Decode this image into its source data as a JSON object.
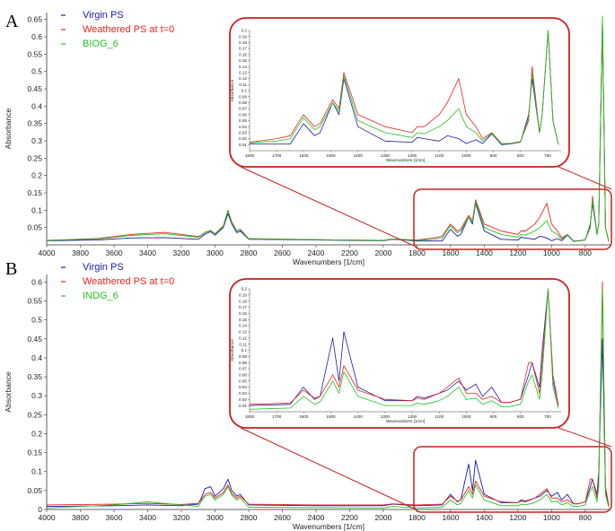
{
  "chart_data": [
    {
      "type": "line",
      "panel_label": "A",
      "xlabel": "Wavenumbers [1/cm]",
      "ylabel": "Absorbance",
      "xlim": [
        4000,
        650
      ],
      "ylim": [
        0,
        0.67
      ],
      "x_ticks": [
        4000,
        3800,
        3600,
        3400,
        3200,
        3000,
        2800,
        2600,
        2400,
        2200,
        2000,
        1800,
        1600,
        1400,
        1200,
        1000,
        800
      ],
      "y_ticks": [
        0.05,
        0.1,
        0.15,
        0.2,
        0.25,
        0.3,
        0.35,
        0.4,
        0.45,
        0.5,
        0.55,
        0.6,
        0.65
      ],
      "x_tick_labels": [
        "4000",
        "3800",
        "3600",
        "3400",
        "3200",
        "3000",
        "2800",
        "2600",
        "2400",
        "2200",
        "2000",
        "1800",
        "1600",
        "1400",
        "1200",
        "1000",
        "800"
      ],
      "y_tick_labels": [
        "0.05",
        "0.1",
        "0.15",
        "0.2",
        "0.25",
        "0.3",
        "0.35",
        "0.4",
        "0.45",
        "0.5",
        "0.55",
        "0.6",
        "0.65"
      ],
      "legend": "top-left",
      "colors": [
        "#1a1aa8",
        "#e8231e",
        "#22c422"
      ],
      "series": [
        {
          "name": "Virgin PS",
          "x": [
            4000,
            3700,
            3500,
            3300,
            3100,
            3082,
            3060,
            3026,
            3000,
            2950,
            2923,
            2900,
            2870,
            2850,
            2800,
            2400,
            2000,
            1943,
            1800,
            1650,
            1601,
            1560,
            1540,
            1493,
            1470,
            1452,
            1400,
            1300,
            1200,
            1181,
            1155,
            1100,
            1070,
            1028,
            1000,
            965,
            940,
            906,
            870,
            842,
            800,
            770,
            757,
            730,
            720,
            698,
            680,
            660
          ],
          "y": [
            0.012,
            0.014,
            0.02,
            0.021,
            0.016,
            0.022,
            0.031,
            0.038,
            0.028,
            0.05,
            0.09,
            0.06,
            0.035,
            0.04,
            0.016,
            0.014,
            0.012,
            0.016,
            0.011,
            0.011,
            0.045,
            0.025,
            0.03,
            0.08,
            0.06,
            0.12,
            0.04,
            0.016,
            0.014,
            0.022,
            0.02,
            0.016,
            0.025,
            0.02,
            0.012,
            0.018,
            0.012,
            0.028,
            0.01,
            0.011,
            0.014,
            0.06,
            0.12,
            0.03,
            0.06,
            0.65,
            0.05,
            0.01
          ]
        },
        {
          "name": "Weathered PS at t=0",
          "x": [
            4000,
            3700,
            3500,
            3300,
            3100,
            3082,
            3060,
            3026,
            3000,
            2950,
            2923,
            2900,
            2870,
            2850,
            2800,
            2400,
            2000,
            1943,
            1800,
            1700,
            1650,
            1601,
            1560,
            1540,
            1493,
            1470,
            1452,
            1400,
            1300,
            1200,
            1181,
            1155,
            1100,
            1070,
            1028,
            1000,
            965,
            940,
            906,
            870,
            842,
            800,
            770,
            757,
            730,
            720,
            698,
            680,
            660
          ],
          "y": [
            0.013,
            0.018,
            0.03,
            0.036,
            0.024,
            0.028,
            0.036,
            0.042,
            0.032,
            0.055,
            0.1,
            0.066,
            0.04,
            0.045,
            0.018,
            0.015,
            0.013,
            0.017,
            0.014,
            0.02,
            0.025,
            0.06,
            0.04,
            0.045,
            0.085,
            0.07,
            0.13,
            0.06,
            0.04,
            0.03,
            0.04,
            0.04,
            0.06,
            0.08,
            0.12,
            0.06,
            0.04,
            0.02,
            0.03,
            0.012,
            0.012,
            0.015,
            0.05,
            0.14,
            0.03,
            0.06,
            0.64,
            0.05,
            0.01
          ]
        },
        {
          "name": "BIOG_6",
          "x": [
            4000,
            3700,
            3500,
            3300,
            3100,
            3082,
            3060,
            3026,
            3000,
            2950,
            2923,
            2900,
            2870,
            2850,
            2800,
            2400,
            2000,
            1943,
            1800,
            1700,
            1650,
            1601,
            1560,
            1540,
            1493,
            1470,
            1452,
            1400,
            1300,
            1200,
            1181,
            1155,
            1100,
            1070,
            1028,
            1000,
            965,
            940,
            906,
            870,
            842,
            800,
            770,
            757,
            730,
            720,
            698,
            680,
            660
          ],
          "y": [
            0.013,
            0.017,
            0.027,
            0.032,
            0.022,
            0.027,
            0.035,
            0.041,
            0.031,
            0.053,
            0.098,
            0.064,
            0.039,
            0.044,
            0.017,
            0.015,
            0.013,
            0.017,
            0.013,
            0.016,
            0.02,
            0.055,
            0.035,
            0.04,
            0.08,
            0.065,
            0.125,
            0.05,
            0.03,
            0.022,
            0.03,
            0.028,
            0.04,
            0.05,
            0.07,
            0.04,
            0.03,
            0.016,
            0.029,
            0.011,
            0.012,
            0.014,
            0.055,
            0.13,
            0.03,
            0.06,
            0.66,
            0.05,
            0.01
          ]
        }
      ],
      "inset": {
        "xlabel": "Wavenumbers [1/cm]",
        "ylabel": "Absorbance",
        "xlim": [
          1800,
          650
        ],
        "ylim": [
          0,
          0.2
        ],
        "x_ticks": [
          1800,
          1700,
          1600,
          1500,
          1400,
          1300,
          1200,
          1100,
          1000,
          900,
          800,
          700
        ],
        "y_ticks": [
          0.01,
          0.02,
          0.03,
          0.04,
          0.05,
          0.06,
          0.07,
          0.08,
          0.09,
          0.1,
          0.11,
          0.12,
          0.13,
          0.14,
          0.15,
          0.16,
          0.17,
          0.18,
          0.19,
          0.2
        ],
        "x_tick_labels": [
          "1800",
          "1700",
          "1600",
          "1500",
          "1400",
          "1300",
          "1200",
          "1100",
          "1000",
          "900",
          "800",
          "700"
        ],
        "y_tick_labels": [
          "0.01",
          "0.02",
          "0.03",
          "0.04",
          "0.05",
          "0.06",
          "0.07",
          "0.08",
          "0.09",
          "0.1",
          "0.11",
          "0.12",
          "0.13",
          "0.14",
          "0.15",
          "0.16",
          "0.17",
          "0.18",
          "0.19",
          "0.2"
        ]
      }
    },
    {
      "type": "line",
      "panel_label": "B",
      "xlabel": "Wavenumbers [1/cm]",
      "ylabel": "Absorbance",
      "xlim": [
        4000,
        650
      ],
      "ylim": [
        0,
        0.62
      ],
      "x_ticks": [
        4000,
        3800,
        3600,
        3400,
        3200,
        3000,
        2800,
        2600,
        2400,
        2200,
        2000,
        1800,
        1600,
        1400,
        1200,
        1000,
        800
      ],
      "y_ticks": [
        0,
        0.05,
        0.1,
        0.15,
        0.2,
        0.25,
        0.3,
        0.35,
        0.4,
        0.45,
        0.5,
        0.55,
        0.6
      ],
      "x_tick_labels": [
        "4000",
        "3800",
        "3600",
        "3400",
        "3200",
        "3000",
        "2800",
        "2600",
        "2400",
        "2200",
        "2000",
        "1800",
        "1600",
        "1400",
        "1200",
        "1000",
        "800"
      ],
      "y_tick_labels": [
        "0",
        "0.05",
        "0.1",
        "0.15",
        "0.2",
        "0.25",
        "0.3",
        "0.35",
        "0.4",
        "0.45",
        "0.5",
        "0.55",
        "0.6"
      ],
      "legend": "top-left",
      "colors": [
        "#1a1aa8",
        "#e8231e",
        "#22c422"
      ],
      "series": [
        {
          "name": "Virgin PS",
          "x": [
            4000,
            3600,
            3400,
            3200,
            3100,
            3082,
            3060,
            3026,
            3000,
            2950,
            2923,
            2900,
            2870,
            2850,
            2800,
            2400,
            2000,
            1943,
            1800,
            1650,
            1601,
            1560,
            1540,
            1493,
            1470,
            1452,
            1400,
            1300,
            1200,
            1181,
            1155,
            1100,
            1070,
            1028,
            1000,
            965,
            940,
            906,
            870,
            842,
            800,
            770,
            757,
            730,
            720,
            698,
            680,
            660
          ],
          "y": [
            0.008,
            0.01,
            0.012,
            0.01,
            0.014,
            0.03,
            0.055,
            0.06,
            0.035,
            0.055,
            0.08,
            0.05,
            0.035,
            0.04,
            0.012,
            0.01,
            0.01,
            0.014,
            0.01,
            0.012,
            0.04,
            0.02,
            0.025,
            0.12,
            0.05,
            0.13,
            0.04,
            0.018,
            0.018,
            0.025,
            0.022,
            0.03,
            0.035,
            0.05,
            0.035,
            0.045,
            0.025,
            0.04,
            0.015,
            0.015,
            0.02,
            0.06,
            0.08,
            0.04,
            0.1,
            0.45,
            0.05,
            0.01
          ]
        },
        {
          "name": "Weathered PS at t=0",
          "x": [
            4000,
            3600,
            3400,
            3200,
            3100,
            3082,
            3060,
            3026,
            3000,
            2950,
            2923,
            2900,
            2870,
            2850,
            2800,
            2400,
            2000,
            1943,
            1800,
            1650,
            1601,
            1560,
            1540,
            1493,
            1470,
            1452,
            1400,
            1300,
            1200,
            1181,
            1155,
            1100,
            1070,
            1028,
            1000,
            965,
            940,
            906,
            870,
            842,
            800,
            770,
            757,
            730,
            720,
            698,
            680,
            660
          ],
          "y": [
            0.012,
            0.014,
            0.016,
            0.013,
            0.016,
            0.025,
            0.04,
            0.045,
            0.03,
            0.045,
            0.065,
            0.042,
            0.03,
            0.035,
            0.014,
            0.012,
            0.012,
            0.015,
            0.012,
            0.014,
            0.035,
            0.022,
            0.025,
            0.06,
            0.04,
            0.075,
            0.035,
            0.02,
            0.018,
            0.022,
            0.02,
            0.03,
            0.04,
            0.055,
            0.03,
            0.03,
            0.02,
            0.025,
            0.015,
            0.015,
            0.02,
            0.08,
            0.08,
            0.03,
            0.08,
            0.6,
            0.06,
            0.01
          ]
        },
        {
          "name": "INDG_6",
          "x": [
            4000,
            3600,
            3400,
            3200,
            3100,
            3082,
            3060,
            3026,
            3000,
            2950,
            2923,
            2900,
            2870,
            2850,
            2800,
            2400,
            2000,
            1943,
            1800,
            1650,
            1601,
            1560,
            1540,
            1493,
            1470,
            1452,
            1400,
            1300,
            1200,
            1181,
            1155,
            1100,
            1070,
            1028,
            1000,
            965,
            940,
            906,
            870,
            842,
            800,
            770,
            757,
            730,
            720,
            698,
            680,
            660
          ],
          "y": [
            0.004,
            0.012,
            0.02,
            0.012,
            0.008,
            0.02,
            0.035,
            0.04,
            0.025,
            0.04,
            0.06,
            0.038,
            0.025,
            0.03,
            0.006,
            0.005,
            0.004,
            0.008,
            0.004,
            0.006,
            0.025,
            0.012,
            0.016,
            0.05,
            0.03,
            0.065,
            0.025,
            0.01,
            0.01,
            0.014,
            0.012,
            0.018,
            0.025,
            0.04,
            0.02,
            0.022,
            0.012,
            0.018,
            0.008,
            0.008,
            0.012,
            0.05,
            0.06,
            0.02,
            0.06,
            0.58,
            0.04,
            0.005
          ]
        }
      ],
      "inset": {
        "xlabel": "Wavenumbers [1/cm]",
        "ylabel": "Absorbance",
        "xlim": [
          1800,
          650
        ],
        "ylim": [
          0,
          0.2
        ],
        "x_ticks": [
          1800,
          1700,
          1600,
          1500,
          1400,
          1300,
          1200,
          1100,
          1000,
          900,
          800,
          700
        ],
        "y_ticks": [
          0.01,
          0.02,
          0.03,
          0.04,
          0.05,
          0.06,
          0.07,
          0.08,
          0.09,
          0.1,
          0.11,
          0.12,
          0.13,
          0.14,
          0.15,
          0.16,
          0.17,
          0.18,
          0.19,
          0.2
        ],
        "x_tick_labels": [
          "1800",
          "1700",
          "1600",
          "1500",
          "1400",
          "1300",
          "1200",
          "1100",
          "1000",
          "900",
          "800",
          "700"
        ],
        "y_tick_labels": [
          "0.01",
          "0.02",
          "0.03",
          "0.04",
          "0.05",
          "0.06",
          "0.07",
          "0.08",
          "0.09",
          "0.1",
          "0.11",
          "0.12",
          "0.13",
          "0.14",
          "0.15",
          "0.16",
          "0.17",
          "0.18",
          "0.19",
          "0.2"
        ]
      }
    }
  ]
}
